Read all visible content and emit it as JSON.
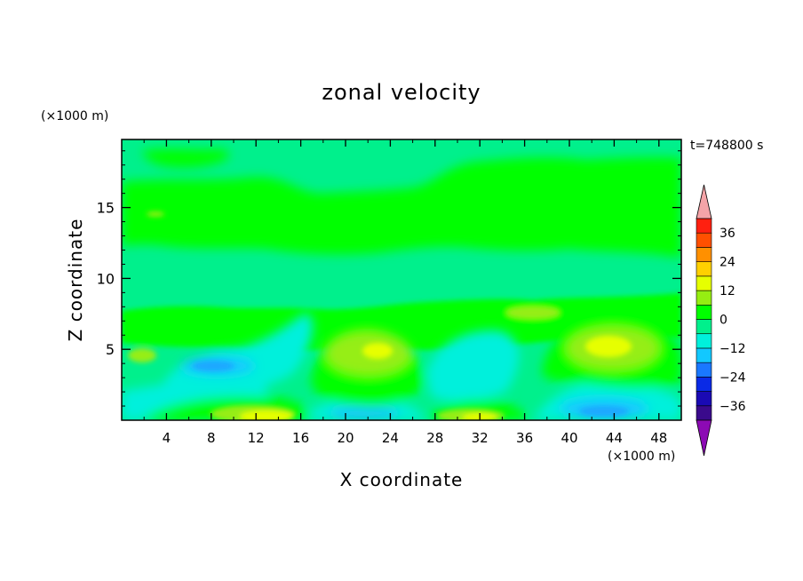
{
  "chart_data": {
    "type": "heatmap",
    "title": "zonal velocity",
    "xlabel": "X coordinate",
    "ylabel": "Z coordinate",
    "x_unit": "(×1000 m)",
    "y_unit": "(×1000 m)",
    "time_label": "t=748800 s",
    "xlim": [
      0,
      50
    ],
    "ylim": [
      0,
      19.8
    ],
    "x_ticks": [
      4,
      8,
      12,
      16,
      20,
      24,
      28,
      32,
      36,
      40,
      44,
      48
    ],
    "y_ticks": [
      5,
      10,
      15
    ],
    "colorbar": {
      "levels": [
        -42,
        -36,
        -30,
        -24,
        -18,
        -12,
        -6,
        0,
        6,
        12,
        18,
        24,
        30,
        36,
        42
      ],
      "tick_values": [
        36,
        24,
        12,
        0,
        -12,
        -24,
        -36
      ],
      "tick_labels": [
        "36",
        "24",
        "12",
        "0",
        "−12",
        "−24",
        "−36"
      ],
      "colors": [
        "#3a0a8c",
        "#1a0ab4",
        "#0a2ae6",
        "#1a78ff",
        "#12c8ff",
        "#00f0dc",
        "#00f08c",
        "#00ff00",
        "#96ee12",
        "#e6ff00",
        "#ffd000",
        "#ff9000",
        "#ff5000",
        "#ff2010"
      ],
      "over_color": "#f4a4a8",
      "under_color": "#8c0ab4"
    },
    "features": [
      {
        "x": 44,
        "z": 5.3,
        "value": 12
      },
      {
        "x": 22.5,
        "z": 5,
        "value": 8
      },
      {
        "x": 14,
        "z": 0.7,
        "value": 10
      },
      {
        "x": 31,
        "z": 0.6,
        "value": 8
      },
      {
        "x": 10,
        "z": 4,
        "value": -9
      },
      {
        "x": 43.5,
        "z": 1.2,
        "value": -9
      },
      {
        "x": 20,
        "z": 0.5,
        "value": -9
      }
    ]
  }
}
